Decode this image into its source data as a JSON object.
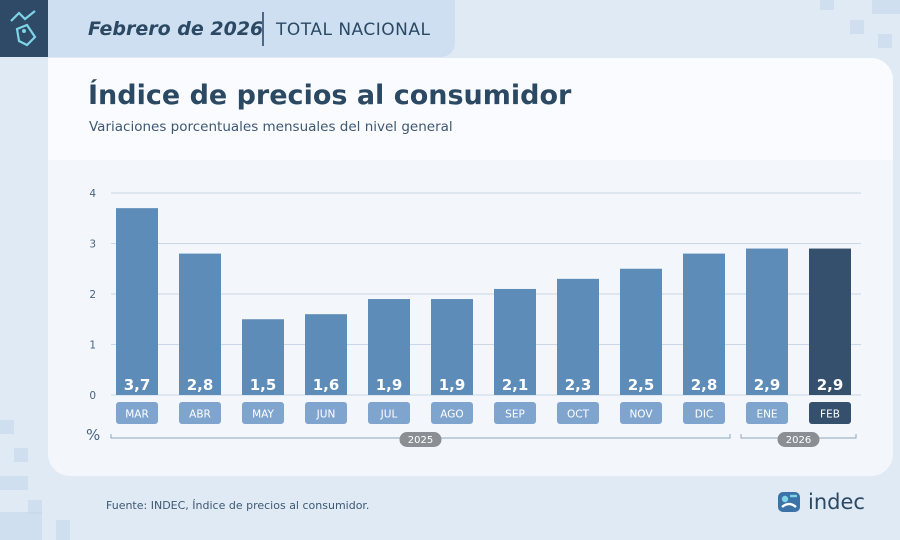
{
  "header": {
    "period": "Febrero de 2026",
    "scope": "TOTAL NACIONAL"
  },
  "title": "Índice de precios al consumidor",
  "subtitle": "Variaciones porcentuales mensuales del nivel general",
  "source": "Fuente: INDEC, Índice de precios al consumidor.",
  "brand": "indec",
  "colors": {
    "bar": "#5d8cb8",
    "bar_highlight": "#35506c",
    "label": "#7fa5cf",
    "label_highlight": "#35506c"
  },
  "chart_data": {
    "type": "bar",
    "categories": [
      "MAR",
      "ABR",
      "MAY",
      "JUN",
      "JUL",
      "AGO",
      "SEP",
      "OCT",
      "NOV",
      "DIC",
      "ENE",
      "FEB"
    ],
    "values": [
      3.7,
      2.8,
      1.5,
      1.6,
      1.9,
      1.9,
      2.1,
      2.3,
      2.5,
      2.8,
      2.9,
      2.9
    ],
    "value_labels": [
      "3,7",
      "2,8",
      "1,5",
      "1,6",
      "1,9",
      "1,9",
      "2,1",
      "2,3",
      "2,5",
      "2,8",
      "2,9",
      "2,9"
    ],
    "highlight_index": 11,
    "yticks": [
      "0",
      "1",
      "2",
      "3",
      "4"
    ],
    "ylim": [
      0,
      4
    ],
    "ylabel": "%",
    "grid": true,
    "year_groups": [
      {
        "label": "2025",
        "from": 0,
        "to": 9
      },
      {
        "label": "2026",
        "from": 10,
        "to": 11
      }
    ]
  }
}
